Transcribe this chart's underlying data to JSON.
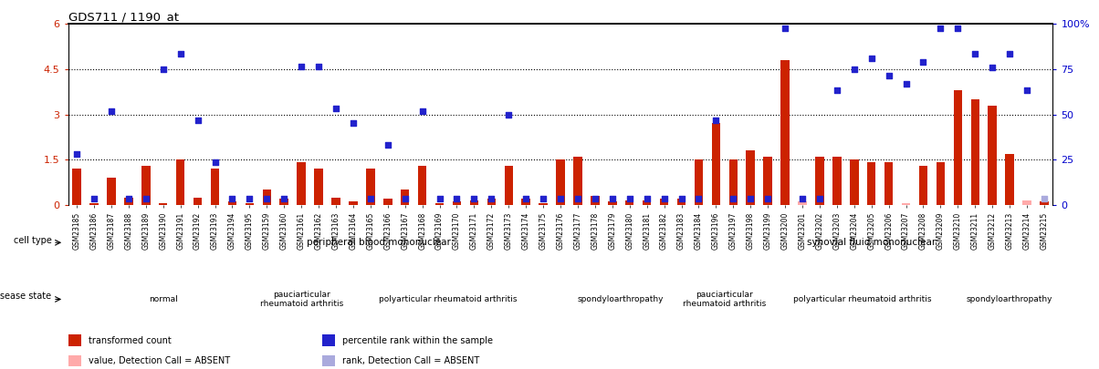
{
  "title": "GDS711 / 1190_at",
  "samples": [
    "GSM23185",
    "GSM23186",
    "GSM23187",
    "GSM23188",
    "GSM23189",
    "GSM23190",
    "GSM23191",
    "GSM23192",
    "GSM23193",
    "GSM23194",
    "GSM23195",
    "GSM23159",
    "GSM23160",
    "GSM23161",
    "GSM23162",
    "GSM23163",
    "GSM23164",
    "GSM23165",
    "GSM23166",
    "GSM23167",
    "GSM23168",
    "GSM23169",
    "GSM23170",
    "GSM23171",
    "GSM23172",
    "GSM23173",
    "GSM23174",
    "GSM23175",
    "GSM23176",
    "GSM23177",
    "GSM23178",
    "GSM23179",
    "GSM23180",
    "GSM23181",
    "GSM23182",
    "GSM23183",
    "GSM23184",
    "GSM23196",
    "GSM23197",
    "GSM23198",
    "GSM23199",
    "GSM23200",
    "GSM23201",
    "GSM23202",
    "GSM23203",
    "GSM23204",
    "GSM23205",
    "GSM23206",
    "GSM23207",
    "GSM23208",
    "GSM23209",
    "GSM23210",
    "GSM23211",
    "GSM23212",
    "GSM23213",
    "GSM23214",
    "GSM23215"
  ],
  "bar_values": [
    1.2,
    0.05,
    0.9,
    0.25,
    1.3,
    0.05,
    1.5,
    0.25,
    1.2,
    0.1,
    0.05,
    0.5,
    0.2,
    1.4,
    1.2,
    0.25,
    0.1,
    1.2,
    0.2,
    0.5,
    1.3,
    0.05,
    0.1,
    0.15,
    0.2,
    1.3,
    0.2,
    0.05,
    1.5,
    1.6,
    0.3,
    0.1,
    0.15,
    0.15,
    0.2,
    0.2,
    1.5,
    2.7,
    1.5,
    1.8,
    1.6,
    4.8,
    0.1,
    1.6,
    1.6,
    1.5,
    1.4,
    1.4,
    0.05,
    1.3,
    1.4,
    3.8,
    3.5,
    3.3,
    1.7,
    0.15,
    0.1
  ],
  "bar_absent": [
    false,
    false,
    false,
    false,
    false,
    false,
    false,
    false,
    false,
    false,
    false,
    false,
    false,
    false,
    false,
    false,
    false,
    false,
    false,
    false,
    false,
    false,
    false,
    false,
    false,
    false,
    false,
    false,
    false,
    false,
    false,
    false,
    false,
    false,
    false,
    false,
    false,
    false,
    false,
    false,
    false,
    false,
    true,
    false,
    false,
    false,
    false,
    false,
    true,
    false,
    false,
    false,
    false,
    false,
    false,
    true,
    false
  ],
  "rank_values": [
    1.7,
    0.2,
    3.1,
    0.2,
    0.2,
    4.5,
    5.0,
    2.8,
    1.4,
    0.2,
    0.2,
    0.2,
    0.2,
    4.6,
    4.6,
    3.2,
    2.7,
    0.2,
    2.0,
    0.2,
    3.1,
    0.2,
    0.2,
    0.2,
    0.2,
    3.0,
    0.2,
    0.2,
    0.2,
    0.2,
    0.2,
    0.2,
    0.2,
    0.2,
    0.2,
    0.2,
    0.2,
    2.8,
    0.2,
    0.2,
    0.2,
    5.85,
    0.2,
    0.2,
    3.8,
    4.5,
    4.85,
    4.3,
    4.0,
    4.75,
    5.85,
    5.85,
    5.0,
    4.55,
    5.0,
    3.8,
    0.2
  ],
  "rank_absent": [
    false,
    false,
    false,
    false,
    false,
    false,
    false,
    false,
    false,
    false,
    false,
    false,
    false,
    false,
    false,
    false,
    false,
    false,
    false,
    false,
    false,
    false,
    false,
    false,
    false,
    false,
    false,
    false,
    false,
    false,
    false,
    false,
    false,
    false,
    false,
    false,
    false,
    false,
    false,
    false,
    false,
    false,
    false,
    false,
    false,
    false,
    false,
    false,
    false,
    false,
    false,
    false,
    false,
    false,
    false,
    false,
    true
  ],
  "ylim": [
    0,
    6
  ],
  "yticks_left": [
    0,
    1.5,
    3.0,
    4.5,
    6.0
  ],
  "yticks_right": [
    0,
    25,
    50,
    75,
    100
  ],
  "dotted_lines": [
    1.5,
    3.0,
    4.5
  ],
  "bar_color_present": "#cc2200",
  "bar_color_absent": "#ffaaaa",
  "rank_color_present": "#2222cc",
  "rank_color_absent": "#aaaadd",
  "left_tick_color": "#cc2200",
  "right_tick_color": "#0000cc",
  "cell_type_regions": [
    {
      "label": "peripheral blood mononuclear",
      "start": 0,
      "end": 36,
      "color": "#99ee99"
    },
    {
      "label": "synovial fluid mononuclear",
      "start": 36,
      "end": 57,
      "color": "#44cc44"
    }
  ],
  "disease_state_regions": [
    {
      "label": "normal",
      "start": 0,
      "end": 11,
      "color": "#ee99ee"
    },
    {
      "label": "pauciarticular\nrheumatoid arthritis",
      "start": 11,
      "end": 16,
      "color": "#ddaadd"
    },
    {
      "label": "polyarticular rheumatoid arthritis",
      "start": 16,
      "end": 28,
      "color": "#ee99ee"
    },
    {
      "label": "spondyloarthropathy",
      "start": 28,
      "end": 36,
      "color": "#cc66cc"
    },
    {
      "label": "pauciarticular\nrheumatoid arthritis",
      "start": 36,
      "end": 40,
      "color": "#ddaadd"
    },
    {
      "label": "polyarticular rheumatoid arthritis",
      "start": 40,
      "end": 52,
      "color": "#ee99ee"
    },
    {
      "label": "spondyloarthropathy",
      "start": 52,
      "end": 57,
      "color": "#cc66cc"
    }
  ],
  "legend_items": [
    {
      "label": "transformed count",
      "color": "#cc2200"
    },
    {
      "label": "percentile rank within the sample",
      "color": "#2222cc"
    },
    {
      "label": "value, Detection Call = ABSENT",
      "color": "#ffaaaa"
    },
    {
      "label": "rank, Detection Call = ABSENT",
      "color": "#aaaadd"
    }
  ]
}
